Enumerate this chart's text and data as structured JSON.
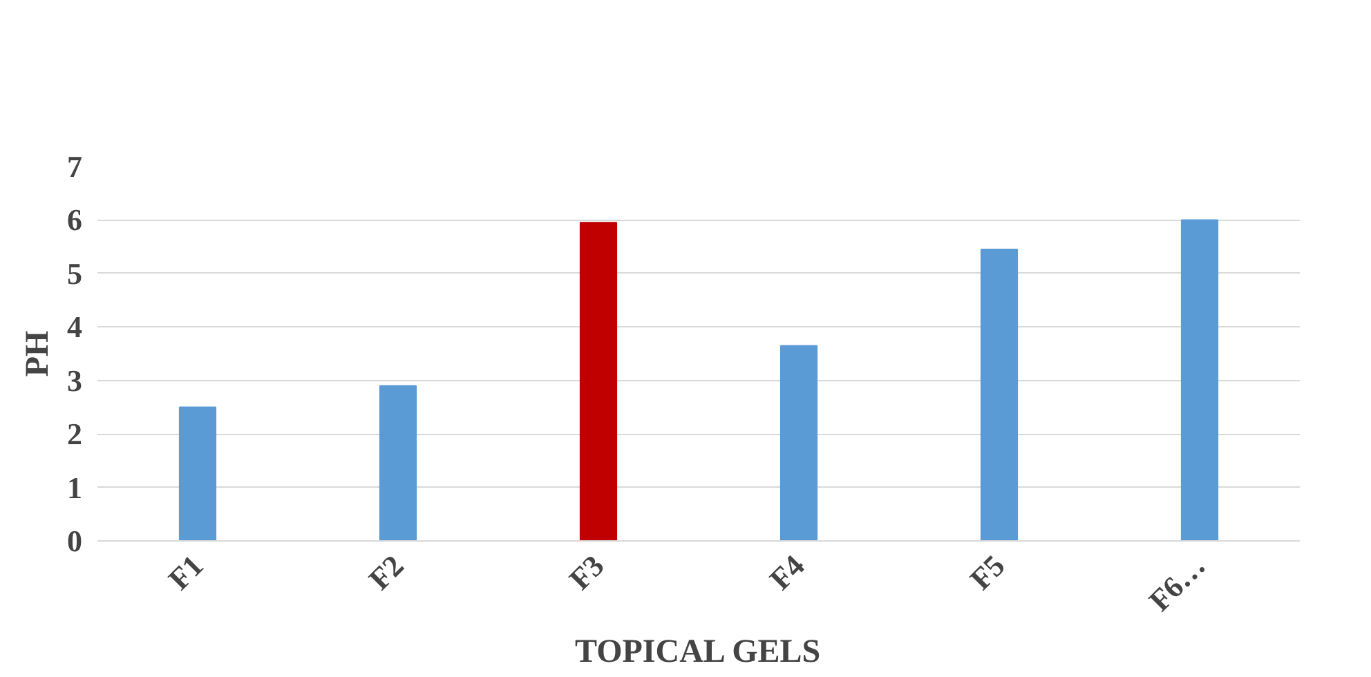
{
  "chart_data": {
    "type": "bar",
    "xlabel": "TOPICAL GELS",
    "ylabel": "PH",
    "categories": [
      "F1",
      "F2",
      "F3",
      "F4",
      "F5",
      "F6…"
    ],
    "values": [
      2.5,
      2.9,
      5.95,
      3.65,
      5.45,
      6.0
    ],
    "colors": [
      "#5b9bd5",
      "#5b9bd5",
      "#c00000",
      "#5b9bd5",
      "#5b9bd5",
      "#5b9bd5"
    ],
    "ylim": [
      0,
      7
    ],
    "yticks": [
      0,
      1,
      2,
      3,
      4,
      5,
      6,
      7
    ],
    "grid": "y"
  }
}
